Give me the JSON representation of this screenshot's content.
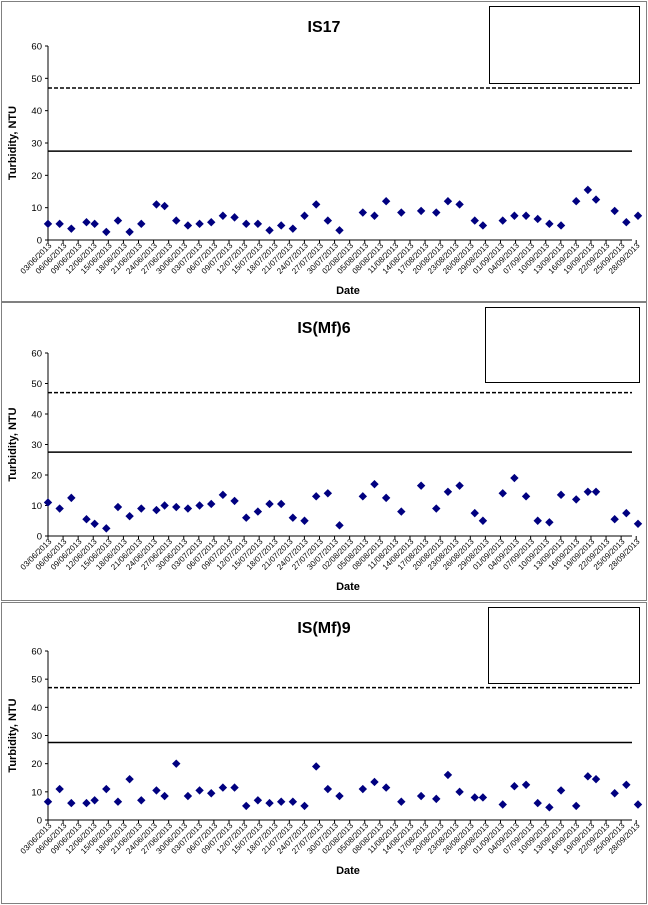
{
  "chart_data": [
    {
      "type": "scatter",
      "title": "IS17",
      "xlabel": "Date",
      "ylabel": "Turbidity, NTU",
      "ylim": [
        0,
        60
      ],
      "yticks": [
        0,
        10,
        20,
        30,
        40,
        50,
        60
      ],
      "xtick_labels": [
        "03/06/2013",
        "06/06/2013",
        "09/06/2013",
        "12/06/2013",
        "15/06/2013",
        "18/06/2013",
        "21/06/2013",
        "24/06/2013",
        "27/06/2013",
        "30/06/2013",
        "03/07/2013",
        "06/07/2013",
        "09/07/2013",
        "12/07/2013",
        "15/07/2013",
        "18/07/2013",
        "21/07/2013",
        "24/07/2013",
        "27/07/2013",
        "30/07/2013",
        "02/08/2013",
        "05/08/2013",
        "08/08/2013",
        "11/08/2013",
        "14/08/2013",
        "17/08/2013",
        "20/08/2013",
        "23/08/2013",
        "26/08/2013",
        "29/08/2013",
        "01/09/2013",
        "04/09/2013",
        "07/09/2013",
        "10/09/2013",
        "13/09/2013",
        "16/09/2013",
        "19/09/2013",
        "22/09/2013",
        "25/09/2013",
        "28/09/2013"
      ],
      "legend_position": "top-right",
      "series": [
        {
          "marker": "diamond",
          "color": "#000080",
          "points": [
            [
              0,
              5
            ],
            [
              1,
              5
            ],
            [
              2,
              3.5
            ],
            [
              3.3,
              5.5
            ],
            [
              4,
              5
            ],
            [
              5,
              2.5
            ],
            [
              6,
              6
            ],
            [
              7,
              2.5
            ],
            [
              8,
              5
            ],
            [
              9.3,
              11
            ],
            [
              10,
              10.5
            ],
            [
              11,
              6
            ],
            [
              12,
              4.5
            ],
            [
              13,
              5
            ],
            [
              14,
              5.5
            ],
            [
              15,
              7.5
            ],
            [
              16,
              7
            ],
            [
              17,
              5
            ],
            [
              18,
              5
            ],
            [
              19,
              3
            ],
            [
              20,
              4.5
            ],
            [
              21,
              3.5
            ],
            [
              22,
              7.5
            ],
            [
              23,
              11
            ],
            [
              24,
              6
            ],
            [
              25,
              3
            ],
            [
              27,
              8.5
            ],
            [
              28,
              7.5
            ],
            [
              29,
              12
            ],
            [
              30.3,
              8.5
            ],
            [
              32,
              9
            ],
            [
              33.3,
              8.5
            ],
            [
              34.3,
              12
            ],
            [
              35.3,
              11
            ],
            [
              36.6,
              6
            ],
            [
              37.3,
              4.5
            ],
            [
              39,
              6
            ],
            [
              40,
              7.5
            ],
            [
              41,
              7.5
            ],
            [
              42,
              6.5
            ],
            [
              43,
              5
            ],
            [
              44,
              4.5
            ],
            [
              45.3,
              12
            ],
            [
              46.3,
              15.5
            ],
            [
              47,
              12.5
            ],
            [
              48.6,
              9
            ],
            [
              49.6,
              5.5
            ],
            [
              50.6,
              7.5
            ]
          ]
        }
      ],
      "hlines": [
        {
          "y": 27.5,
          "style": "solid"
        },
        {
          "y": 47,
          "style": "dashed"
        }
      ]
    },
    {
      "type": "scatter",
      "title": "IS(Mf)6",
      "xlabel": "Date",
      "ylabel": "Turbidity, NTU",
      "ylim": [
        0,
        60
      ],
      "yticks": [
        0,
        10,
        20,
        30,
        40,
        50,
        60
      ],
      "xtick_labels": [
        "03/06/2013",
        "06/06/2013",
        "09/06/2013",
        "12/06/2013",
        "15/06/2013",
        "18/06/2013",
        "21/06/2013",
        "24/06/2013",
        "27/06/2013",
        "30/06/2013",
        "03/07/2013",
        "06/07/2013",
        "09/07/2013",
        "12/07/2013",
        "15/07/2013",
        "18/07/2013",
        "21/07/2013",
        "24/07/2013",
        "27/07/2013",
        "30/07/2013",
        "02/08/2013",
        "05/08/2013",
        "08/08/2013",
        "11/08/2013",
        "14/08/2013",
        "17/08/2013",
        "20/08/2013",
        "23/08/2013",
        "26/08/2013",
        "29/08/2013",
        "01/09/2013",
        "04/09/2013",
        "07/09/2013",
        "10/09/2013",
        "13/09/2013",
        "16/09/2013",
        "19/09/2013",
        "22/09/2013",
        "25/09/2013",
        "28/09/2013"
      ],
      "legend_position": "top-right",
      "series": [
        {
          "marker": "diamond",
          "color": "#000080",
          "points": [
            [
              0,
              11
            ],
            [
              1,
              9
            ],
            [
              2,
              12.5
            ],
            [
              3.3,
              5.5
            ],
            [
              4,
              4
            ],
            [
              5,
              2.5
            ],
            [
              6,
              9.5
            ],
            [
              7,
              6.5
            ],
            [
              8,
              9
            ],
            [
              9.3,
              8.5
            ],
            [
              10,
              10
            ],
            [
              11,
              9.5
            ],
            [
              12,
              9
            ],
            [
              13,
              10
            ],
            [
              14,
              10.5
            ],
            [
              15,
              13.5
            ],
            [
              16,
              11.5
            ],
            [
              17,
              6
            ],
            [
              18,
              8
            ],
            [
              19,
              10.5
            ],
            [
              20,
              10.5
            ],
            [
              21,
              6
            ],
            [
              22,
              5
            ],
            [
              23,
              13
            ],
            [
              24,
              14
            ],
            [
              25,
              3.5
            ],
            [
              27,
              13
            ],
            [
              28,
              17
            ],
            [
              29,
              12.5
            ],
            [
              30.3,
              8
            ],
            [
              32,
              16.5
            ],
            [
              33.3,
              9
            ],
            [
              34.3,
              14.5
            ],
            [
              35.3,
              16.5
            ],
            [
              36.6,
              7.5
            ],
            [
              37.3,
              5
            ],
            [
              39,
              14
            ],
            [
              40,
              19
            ],
            [
              41,
              13
            ],
            [
              42,
              5
            ],
            [
              43,
              4.5
            ],
            [
              44,
              13.5
            ],
            [
              45.3,
              12
            ],
            [
              46.3,
              14.5
            ],
            [
              47,
              14.5
            ],
            [
              48.6,
              5.5
            ],
            [
              49.6,
              7.5
            ],
            [
              50.6,
              4
            ]
          ]
        }
      ],
      "hlines": [
        {
          "y": 27.5,
          "style": "solid"
        },
        {
          "y": 47,
          "style": "dashed"
        }
      ]
    },
    {
      "type": "scatter",
      "title": "IS(Mf)9",
      "xlabel": "Date",
      "ylabel": "Turbidity, NTU",
      "ylim": [
        0,
        60
      ],
      "yticks": [
        0,
        10,
        20,
        30,
        40,
        50,
        60
      ],
      "xtick_labels": [
        "03/06/2013",
        "06/06/2013",
        "09/06/2013",
        "12/06/2013",
        "15/06/2013",
        "18/06/2013",
        "21/06/2013",
        "24/06/2013",
        "27/06/2013",
        "30/06/2013",
        "03/07/2013",
        "06/07/2013",
        "09/07/2013",
        "12/07/2013",
        "15/07/2013",
        "18/07/2013",
        "21/07/2013",
        "24/07/2013",
        "27/07/2013",
        "30/07/2013",
        "02/08/2013",
        "05/08/2013",
        "08/08/2013",
        "11/08/2013",
        "14/08/2013",
        "17/08/2013",
        "20/08/2013",
        "23/08/2013",
        "26/08/2013",
        "29/08/2013",
        "01/09/2013",
        "04/09/2013",
        "07/09/2013",
        "10/09/2013",
        "13/09/2013",
        "16/09/2013",
        "19/09/2013",
        "22/09/2013",
        "25/09/2013",
        "28/09/2013"
      ],
      "legend_position": "top-right",
      "series": [
        {
          "marker": "diamond",
          "color": "#000080",
          "points": [
            [
              0,
              6.5
            ],
            [
              1,
              11
            ],
            [
              2,
              6
            ],
            [
              3.3,
              6
            ],
            [
              4,
              7
            ],
            [
              5,
              11
            ],
            [
              6,
              6.5
            ],
            [
              7,
              14.5
            ],
            [
              8,
              7
            ],
            [
              9.3,
              10.5
            ],
            [
              10,
              8.5
            ],
            [
              11,
              20
            ],
            [
              12,
              8.5
            ],
            [
              13,
              10.5
            ],
            [
              14,
              9.5
            ],
            [
              15,
              11.5
            ],
            [
              16,
              11.5
            ],
            [
              17,
              5
            ],
            [
              18,
              7
            ],
            [
              19,
              6
            ],
            [
              20,
              6.5
            ],
            [
              21,
              6.5
            ],
            [
              22,
              5
            ],
            [
              23,
              19
            ],
            [
              24,
              11
            ],
            [
              25,
              8.5
            ],
            [
              27,
              11
            ],
            [
              28,
              13.5
            ],
            [
              29,
              11.5
            ],
            [
              30.3,
              6.5
            ],
            [
              32,
              8.5
            ],
            [
              33.3,
              7.5
            ],
            [
              34.3,
              16
            ],
            [
              35.3,
              10
            ],
            [
              36.6,
              8
            ],
            [
              37.3,
              8
            ],
            [
              39,
              5.5
            ],
            [
              40,
              12
            ],
            [
              41,
              12.5
            ],
            [
              42,
              6
            ],
            [
              43,
              4.5
            ],
            [
              44,
              10.5
            ],
            [
              45.3,
              5
            ],
            [
              46.3,
              15.5
            ],
            [
              47,
              14.5
            ],
            [
              48.6,
              9.5
            ],
            [
              49.6,
              12.5
            ],
            [
              50.6,
              5.5
            ]
          ]
        }
      ],
      "hlines": [
        {
          "y": 27.5,
          "style": "solid"
        },
        {
          "y": 47,
          "style": "dashed"
        }
      ]
    }
  ]
}
